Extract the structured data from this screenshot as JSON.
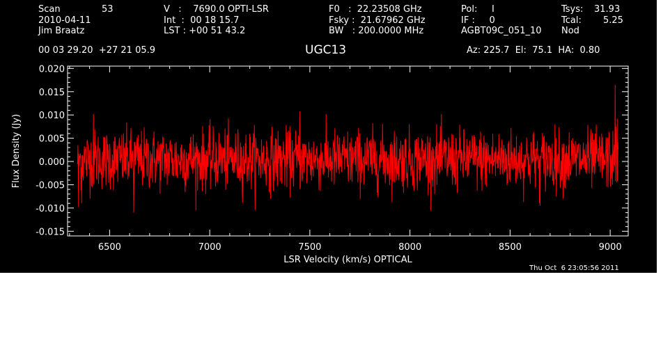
{
  "header": {
    "scan_label": "Scan",
    "scan_value": "53",
    "date": "2010-04-11",
    "observer": "Jim Braatz",
    "velocity": "V   :    7690.0 OPTI-LSR",
    "int_time": "Int  :  00 18 15.7",
    "lst": "LST : +00 51 43.2",
    "f0": "F0   :  22.23508 GHz",
    "fsky": "Fsky :  21.67962 GHz",
    "bw": "BW   : 200.0000 MHz",
    "pol": "Pol:     I",
    "if": "IF :     0",
    "project": "AGBT09C_051_10",
    "tsys_label": "Tsys:",
    "tsys_value": "31.93",
    "tcal_label": "Tcal:",
    "tcal_value": "5.25",
    "proc": "Nod",
    "coords": "00 03 29.20  +27 21 05.9",
    "source": "UGC13",
    "azelha": "Az: 225.7  El:  75.1  HA:  0.80",
    "timestamp": "Thu Oct  6 23:05:56 2011"
  },
  "colors": {
    "background": "#000000",
    "axes": "#ffffff",
    "series": "#ff0000"
  },
  "chart_data": {
    "type": "line",
    "title": "",
    "xlabel": "LSR Velocity (km/s) OPTICAL",
    "ylabel": "Flux Density (Jy)",
    "xlim": [
      6290,
      9090
    ],
    "ylim": [
      -0.016,
      0.0205
    ],
    "x_ticks": [
      6500,
      7000,
      7500,
      8000,
      8500,
      9000
    ],
    "x_tick_labels": [
      "6500",
      "7000",
      "7500",
      "8000",
      "8500",
      "9000"
    ],
    "y_ticks": [
      -0.015,
      -0.01,
      -0.005,
      0.0,
      0.005,
      0.01,
      0.015,
      0.02
    ],
    "y_tick_labels": [
      "-0.015",
      "-0.010",
      "-0.005",
      "0.000",
      "0.005",
      "0.010",
      "0.015",
      "0.020"
    ],
    "grid": false,
    "series": [
      {
        "x_start": 6340,
        "x_end": 9040,
        "n_points": 1600,
        "noise_rms": 0.0032,
        "baseline": 0.0004,
        "features": [
          {
            "x": 6345,
            "y": -0.0098
          },
          {
            "x": 6360,
            "y": -0.009
          },
          {
            "x": 6620,
            "y": -0.011
          },
          {
            "x": 6420,
            "y": 0.0102
          },
          {
            "x": 7450,
            "y": 0.0108
          },
          {
            "x": 8650,
            "y": -0.0095
          },
          {
            "x": 9025,
            "y": 0.0165
          },
          {
            "x": 9035,
            "y": 0.0092
          }
        ]
      }
    ]
  }
}
